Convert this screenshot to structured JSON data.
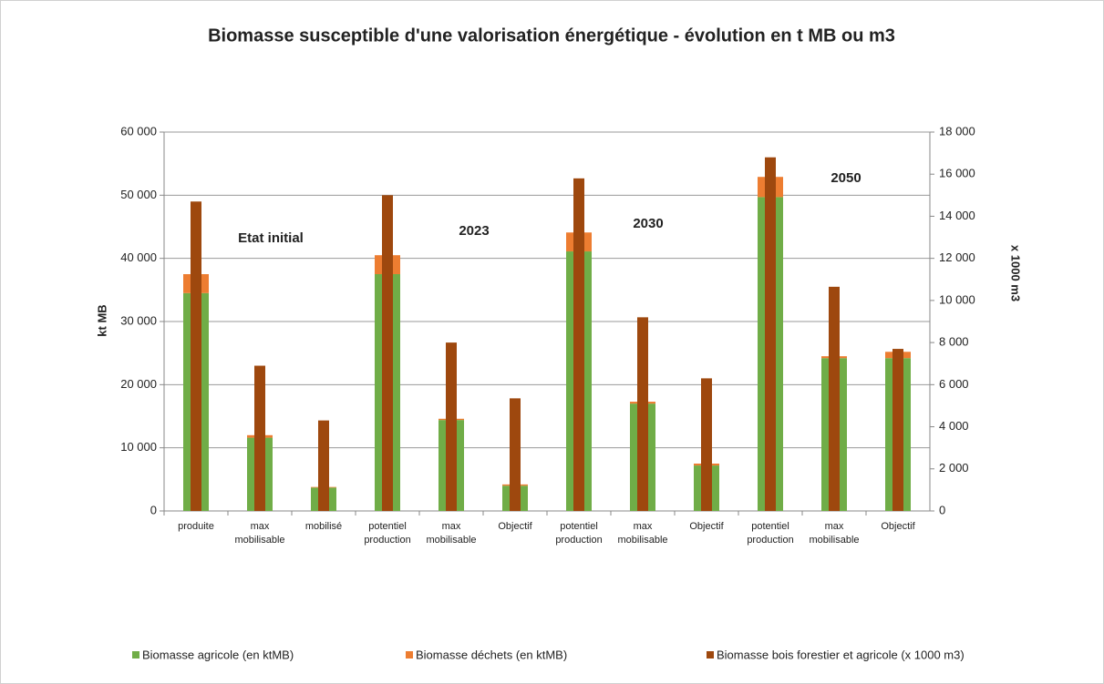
{
  "chart_data": {
    "type": "bar",
    "stacked": true,
    "title": "Biomasse susceptible d'une valorisation énergétique - évolution en t MB ou m3",
    "ylabel": "kt MB",
    "y2label": "x 1000 m3",
    "annotations": [
      "Etat initial",
      "2023",
      "2030",
      "2050"
    ],
    "categories": [
      "produite",
      "max mobilisable",
      "mobilisé",
      "potentiel production",
      "max mobilisable",
      "Objectif",
      "potentiel production",
      "max mobilisable",
      "Objectif",
      "potentiel production",
      "max mobilisable",
      "Objectif"
    ],
    "series": [
      {
        "name": "Biomasse agricole (en ktMB)",
        "color": "#70ad47",
        "values": [
          34500,
          11600,
          3700,
          37500,
          14400,
          4000,
          41100,
          17000,
          7200,
          49700,
          24200,
          24200
        ]
      },
      {
        "name": "Biomasse déchets (en ktMB)",
        "color": "#ed7d31",
        "values": [
          3000,
          400,
          100,
          3000,
          200,
          200,
          3000,
          300,
          300,
          3200,
          300,
          1000
        ]
      },
      {
        "name": "Biomasse bois forestier et agricole (x 1000 m3)",
        "color": "#9e480e",
        "axis": "y2",
        "values": [
          14700,
          6900,
          4300,
          15000,
          8000,
          5350,
          15800,
          9200,
          6300,
          16800,
          10650,
          7700
        ]
      }
    ],
    "ylim": [
      0,
      60000
    ],
    "yticks": [
      0,
      {
        "value": 10000,
        "label": "10 000"
      },
      {
        "value": 20000,
        "label": "20 000"
      },
      {
        "value": 30000,
        "label": "30 000"
      },
      {
        "value": 40000,
        "label": "40 000"
      },
      {
        "value": 50000,
        "label": "50 000"
      },
      {
        "value": 60000,
        "label": "60 000"
      }
    ],
    "y2lim": [
      0,
      18000
    ],
    "y2ticks": [
      0,
      {
        "value": 2000,
        "label": "2 000"
      },
      {
        "value": 4000,
        "label": "4 000"
      },
      {
        "value": 6000,
        "label": "6 000"
      },
      {
        "value": 8000,
        "label": "8 000"
      },
      {
        "value": 10000,
        "label": "10 000"
      },
      {
        "value": 12000,
        "label": "12 000"
      },
      {
        "value": 14000,
        "label": "14 000"
      },
      {
        "value": 16000,
        "label": "16 000"
      },
      {
        "value": 18000,
        "label": "18 000"
      }
    ],
    "grid": true,
    "legend": "bottom"
  }
}
